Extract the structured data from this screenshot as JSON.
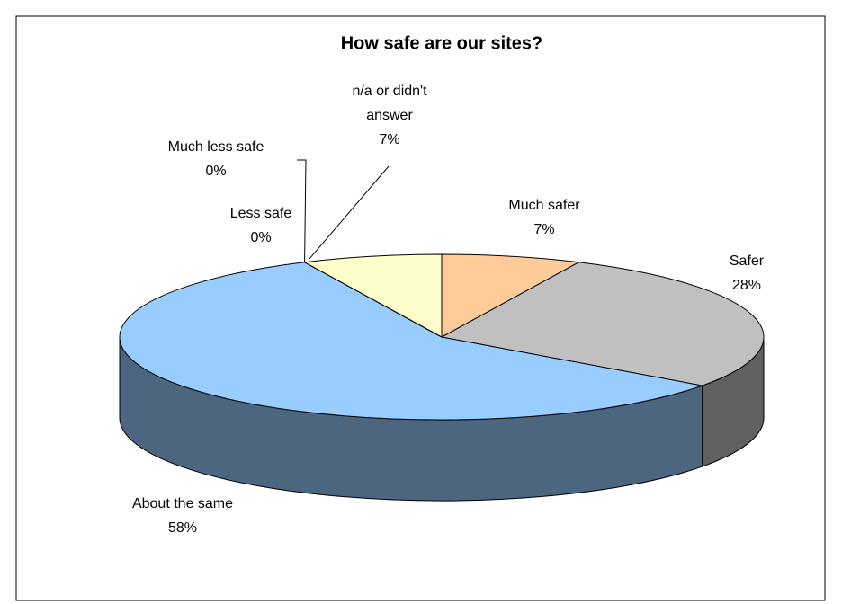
{
  "chart_data": {
    "type": "pie3d",
    "title": "How safe are our sites?",
    "categories": [
      "Much safer",
      "Safer",
      "About the same",
      "Less safe",
      "Much less safe",
      "n/a or didn't answer"
    ],
    "values": [
      7,
      28,
      58,
      0,
      0,
      7
    ],
    "value_labels": [
      "7%",
      "28%",
      "58%",
      "0%",
      "0%",
      "7%"
    ],
    "colors": [
      "#FFCC99",
      "#C0C0C0",
      "#99CCFF",
      "#9999FF",
      "#993366",
      "#FFFFCC"
    ]
  }
}
